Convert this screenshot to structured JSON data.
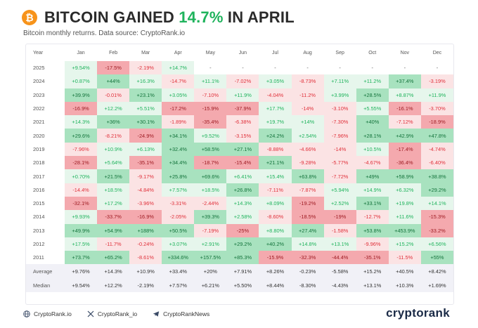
{
  "header": {
    "logo_glyph": "₿",
    "title_prefix": "BITCOIN GAINED ",
    "title_pct": "14.7%",
    "title_suffix": " IN APRIL",
    "subtitle": "Bitcoin monthly returns. Data source: CryptoRank.io"
  },
  "colors": {
    "positive_text": "#1fb35c",
    "negative_text": "#e0303a",
    "positive_strong_bg": "#a8e2bf",
    "positive_light_bg": "#e6f6ec",
    "negative_strong_bg": "#f4a9ae",
    "negative_light_bg": "#fbe3e4",
    "neutral_bg": "#f6f6f6"
  },
  "chart_data": {
    "type": "table",
    "title": "BITCOIN GAINED 14.7% IN APRIL",
    "columns": [
      "Year",
      "Jan",
      "Feb",
      "Mar",
      "Apr",
      "May",
      "Jun",
      "Jul",
      "Aug",
      "Sep",
      "Oct",
      "Nov",
      "Dec"
    ],
    "rows": [
      {
        "label": "2025",
        "values": [
          "+9.54%",
          "-17.5%",
          "-2.19%",
          "+14.7%",
          "-",
          "-",
          "-",
          "-",
          "-",
          "-",
          "-",
          "-"
        ]
      },
      {
        "label": "2024",
        "values": [
          "+0.87%",
          "+44%",
          "+16.3%",
          "-14.7%",
          "+11.1%",
          "-7.02%",
          "+3.05%",
          "-8.73%",
          "+7.11%",
          "+11.2%",
          "+37.4%",
          "-3.19%"
        ]
      },
      {
        "label": "2023",
        "values": [
          "+39.9%",
          "-0.01%",
          "+23.1%",
          "+3.05%",
          "-7.10%",
          "+11.9%",
          "-4.04%",
          "-11.2%",
          "+3.99%",
          "+28.5%",
          "+8.87%",
          "+11.9%"
        ]
      },
      {
        "label": "2022",
        "values": [
          "-16.9%",
          "+12.2%",
          "+5.51%",
          "-17.2%",
          "-15.9%",
          "-37.9%",
          "+17.7%",
          "-14%",
          "-3.10%",
          "+5.55%",
          "-16.1%",
          "-3.70%"
        ]
      },
      {
        "label": "2021",
        "values": [
          "+14.3%",
          "+36%",
          "+30.1%",
          "-1.89%",
          "-35.4%",
          "-6.38%",
          "+19.7%",
          "+14%",
          "-7.30%",
          "+40%",
          "-7.12%",
          "-18.9%"
        ]
      },
      {
        "label": "2020",
        "values": [
          "+29.6%",
          "-8.21%",
          "-24.9%",
          "+34.1%",
          "+9.52%",
          "-3.15%",
          "+24.2%",
          "+2.54%",
          "-7.96%",
          "+28.1%",
          "+42.9%",
          "+47.8%"
        ]
      },
      {
        "label": "2019",
        "values": [
          "-7.96%",
          "+10.9%",
          "+6.13%",
          "+32.4%",
          "+58.5%",
          "+27.1%",
          "-8.88%",
          "-4.66%",
          "-14%",
          "+10.5%",
          "-17.4%",
          "-4.74%"
        ]
      },
      {
        "label": "2018",
        "values": [
          "-28.1%",
          "+5.64%",
          "-35.1%",
          "+34.4%",
          "-18.7%",
          "-15.4%",
          "+21.1%",
          "-9.28%",
          "-5.77%",
          "-4.67%",
          "-36.4%",
          "-6.40%"
        ]
      },
      {
        "label": "2017",
        "values": [
          "+0.70%",
          "+21.5%",
          "-9.17%",
          "+25.8%",
          "+69.6%",
          "+6.41%",
          "+15.4%",
          "+63.8%",
          "-7.72%",
          "+49%",
          "+58.9%",
          "+38.8%"
        ]
      },
      {
        "label": "2016",
        "values": [
          "-14.4%",
          "+18.5%",
          "-4.84%",
          "+7.57%",
          "+18.5%",
          "+26.8%",
          "-7.11%",
          "-7.87%",
          "+5.94%",
          "+14.9%",
          "+6.32%",
          "+29.2%"
        ]
      },
      {
        "label": "2015",
        "values": [
          "-32.1%",
          "+17.2%",
          "-3.96%",
          "-3.31%",
          "-2.44%",
          "+14.3%",
          "+8.09%",
          "-19.2%",
          "+2.52%",
          "+33.1%",
          "+19.8%",
          "+14.1%"
        ]
      },
      {
        "label": "2014",
        "values": [
          "+9.93%",
          "-33.7%",
          "-16.9%",
          "-2.05%",
          "+39.3%",
          "+2.58%",
          "-8.60%",
          "-18.5%",
          "-19%",
          "-12.7%",
          "+11.6%",
          "-15.3%"
        ]
      },
      {
        "label": "2013",
        "values": [
          "+49.9%",
          "+54.9%",
          "+188%",
          "+50.5%",
          "-7.19%",
          "-25%",
          "+8.80%",
          "+27.4%",
          "-1.58%",
          "+53.8%",
          "+453.9%",
          "-33.2%"
        ]
      },
      {
        "label": "2012",
        "values": [
          "+17.5%",
          "-11.7%",
          "-0.24%",
          "+3.07%",
          "+2.91%",
          "+29.2%",
          "+40.2%",
          "+14.8%",
          "+13.1%",
          "-9.96%",
          "+15.2%",
          "+6.56%"
        ]
      },
      {
        "label": "2011",
        "values": [
          "+73.7%",
          "+65.2%",
          "-8.61%",
          "+334.6%",
          "+157.5%",
          "+85.3%",
          "-15.9%",
          "-32.3%",
          "-44.4%",
          "-35.1%",
          "-11.5%",
          "+55%"
        ]
      }
    ],
    "summary": [
      {
        "label": "Average",
        "values": [
          "+9.76%",
          "+14.3%",
          "+10.9%",
          "+33.4%",
          "+20%",
          "+7.91%",
          "+8.26%",
          "-0.23%",
          "-5.58%",
          "+15.2%",
          "+40.5%",
          "+8.42%"
        ]
      },
      {
        "label": "Median",
        "values": [
          "+9.54%",
          "+12.2%",
          "-2.19%",
          "+7.57%",
          "+6.21%",
          "+5.50%",
          "+8.44%",
          "-8.30%",
          "-4.43%",
          "+13.1%",
          "+10.3%",
          "+1.69%"
        ]
      }
    ],
    "color_scale": "green for positive, red for negative; deeper shade for larger magnitude"
  },
  "footer": {
    "items": [
      {
        "icon": "globe-icon",
        "label": "CryptoRank.io"
      },
      {
        "icon": "x-logo-icon",
        "label": "CryptoRank_io"
      },
      {
        "icon": "telegram-icon",
        "label": "CryptoRankNews"
      }
    ],
    "brand": "cryptorank"
  }
}
